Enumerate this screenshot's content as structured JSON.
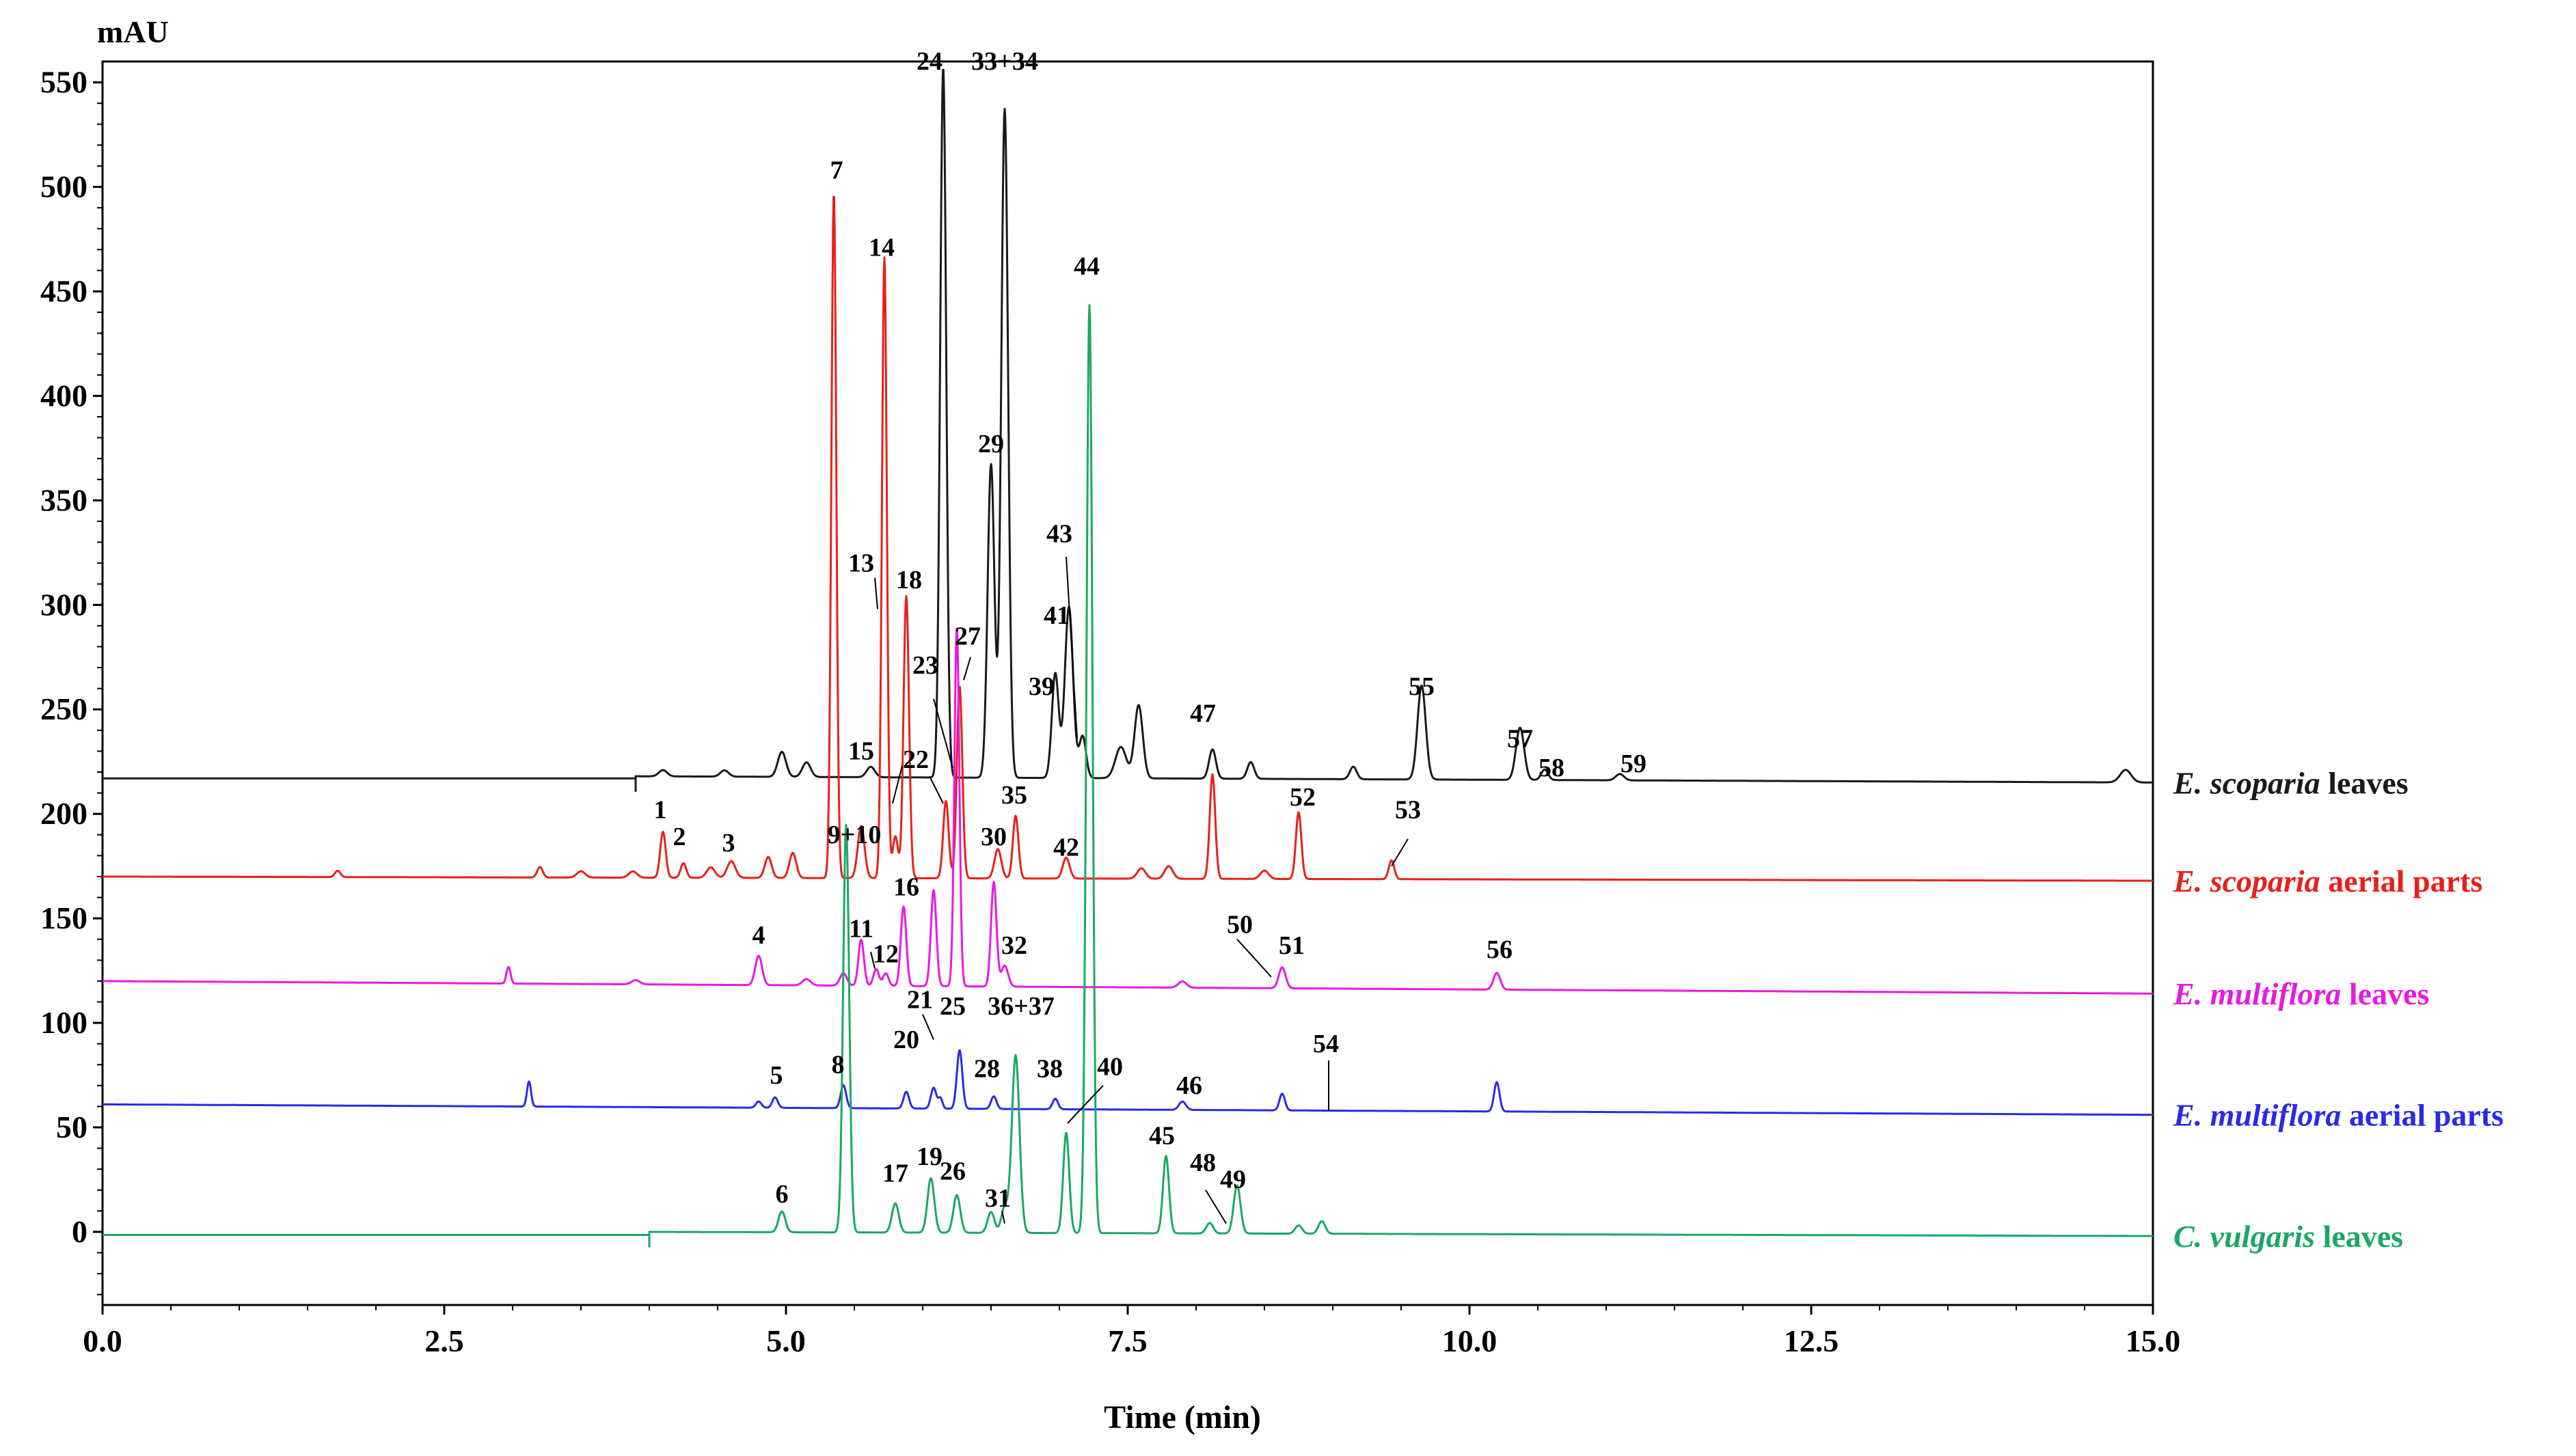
{
  "chart_data": {
    "type": "line",
    "title": "",
    "xlabel": "Time (min)",
    "ylabel": "mAU",
    "xlim": [
      0,
      15
    ],
    "ylim": [
      -35,
      560
    ],
    "x_ticks": [
      "0.0",
      "2.5",
      "5.0",
      "7.5",
      "10.0",
      "12.5",
      "15.0"
    ],
    "y_ticks": [
      "0",
      "50",
      "100",
      "150",
      "200",
      "250",
      "300",
      "350",
      "400",
      "450",
      "500",
      "550"
    ],
    "series": [
      {
        "name_italic": "E. scoparia",
        "name_rest": " leaves",
        "color": "#1a1a1a",
        "start": 3.9,
        "base_start": 218,
        "base_end": 215,
        "pre_base": 217,
        "dip": 3.9,
        "peaks": [
          [
            4.1,
            3,
            0.03
          ],
          [
            4.55,
            3,
            0.03
          ],
          [
            4.97,
            12,
            0.03
          ],
          [
            5.15,
            7,
            0.03
          ],
          [
            5.62,
            5,
            0.03
          ],
          [
            6.15,
            340,
            0.022
          ],
          [
            6.5,
            150,
            0.025
          ],
          [
            6.6,
            320,
            0.025
          ],
          [
            6.97,
            50,
            0.025
          ],
          [
            7.07,
            82,
            0.03
          ],
          [
            7.17,
            20,
            0.025
          ],
          [
            7.45,
            15,
            0.04
          ],
          [
            7.58,
            35,
            0.03
          ],
          [
            8.12,
            14,
            0.025
          ],
          [
            8.4,
            8,
            0.025
          ],
          [
            9.15,
            6,
            0.025
          ],
          [
            9.65,
            45,
            0.03
          ],
          [
            10.37,
            25,
            0.03
          ],
          [
            10.55,
            5,
            0.025
          ],
          [
            11.1,
            3,
            0.03
          ],
          [
            14.8,
            6,
            0.04
          ]
        ]
      },
      {
        "name_italic": "E. scoparia",
        "name_rest": " aerial  parts",
        "color": "#e8201a",
        "start": 0,
        "base_start": 170,
        "base_end": 168,
        "peaks": [
          [
            1.72,
            3,
            0.02
          ],
          [
            3.2,
            5,
            0.02
          ],
          [
            3.5,
            3,
            0.03
          ],
          [
            3.88,
            3,
            0.03
          ],
          [
            4.1,
            22,
            0.02
          ],
          [
            4.25,
            7,
            0.02
          ],
          [
            4.45,
            5,
            0.03
          ],
          [
            4.6,
            8,
            0.03
          ],
          [
            4.87,
            10,
            0.025
          ],
          [
            5.05,
            12,
            0.025
          ],
          [
            5.35,
            328,
            0.018
          ],
          [
            5.55,
            25,
            0.025
          ],
          [
            5.72,
            297,
            0.018
          ],
          [
            5.8,
            20,
            0.02
          ],
          [
            5.88,
            135,
            0.02
          ],
          [
            6.17,
            37,
            0.02
          ],
          [
            6.27,
            92,
            0.02
          ],
          [
            6.55,
            14,
            0.025
          ],
          [
            6.68,
            30,
            0.02
          ],
          [
            7.05,
            10,
            0.025
          ],
          [
            7.6,
            5,
            0.03
          ],
          [
            7.8,
            6,
            0.03
          ],
          [
            8.12,
            50,
            0.02
          ],
          [
            8.5,
            4,
            0.03
          ],
          [
            8.75,
            32,
            0.02
          ],
          [
            9.43,
            9,
            0.02
          ]
        ]
      },
      {
        "name_italic": "E. multiflora",
        "name_rest": " leaves",
        "color": "#e81ae0",
        "start": 0,
        "base_start": 120,
        "base_end": 114,
        "peaks": [
          [
            2.97,
            8,
            0.015
          ],
          [
            3.9,
            2,
            0.03
          ],
          [
            4.8,
            14,
            0.025
          ],
          [
            5.15,
            3,
            0.03
          ],
          [
            5.42,
            6,
            0.025
          ],
          [
            5.55,
            22,
            0.02
          ],
          [
            5.66,
            8,
            0.02
          ],
          [
            5.73,
            6,
            0.02
          ],
          [
            5.86,
            38,
            0.02
          ],
          [
            6.08,
            46,
            0.02
          ],
          [
            6.25,
            172,
            0.018
          ],
          [
            6.52,
            50,
            0.02
          ],
          [
            6.6,
            10,
            0.025
          ],
          [
            7.9,
            3,
            0.03
          ],
          [
            8.63,
            10,
            0.025
          ],
          [
            10.2,
            8,
            0.025
          ]
        ]
      },
      {
        "name_italic": "E. multiflora",
        "name_rest": " aerial  parts",
        "color": "#2a2ae8",
        "start": 0,
        "base_start": 61,
        "base_end": 56,
        "peaks": [
          [
            3.12,
            12,
            0.015
          ],
          [
            4.8,
            3,
            0.02
          ],
          [
            4.92,
            5,
            0.02
          ],
          [
            5.42,
            11,
            0.02
          ],
          [
            5.88,
            8,
            0.02
          ],
          [
            6.08,
            10,
            0.02
          ],
          [
            6.13,
            5,
            0.015
          ],
          [
            6.27,
            28,
            0.02
          ],
          [
            6.52,
            6,
            0.02
          ],
          [
            6.97,
            5,
            0.02
          ],
          [
            7.9,
            4,
            0.025
          ],
          [
            8.63,
            8,
            0.02
          ],
          [
            10.2,
            14,
            0.02
          ]
        ]
      },
      {
        "name_italic": "C. vulgaris",
        "name_rest": " leaves",
        "color": "#1aa864",
        "start": 4.0,
        "base_start": 0,
        "base_end": -2,
        "pre_base": -1.5,
        "dip": 4.0,
        "peaks": [
          [
            4.97,
            10,
            0.025
          ],
          [
            5.44,
            195,
            0.022
          ],
          [
            5.8,
            14,
            0.025
          ],
          [
            6.06,
            26,
            0.025
          ],
          [
            6.25,
            18,
            0.025
          ],
          [
            6.5,
            10,
            0.025
          ],
          [
            6.6,
            12,
            0.025
          ],
          [
            6.68,
            85,
            0.028
          ],
          [
            7.05,
            48,
            0.022
          ],
          [
            7.22,
            444,
            0.022
          ],
          [
            7.78,
            37,
            0.022
          ],
          [
            8.1,
            5,
            0.025
          ],
          [
            8.3,
            23,
            0.025
          ],
          [
            8.75,
            4,
            0.025
          ],
          [
            8.92,
            6,
            0.025
          ]
        ]
      }
    ],
    "annotations": [
      {
        "text": "24",
        "x": 6.05,
        "y": 556
      },
      {
        "text": "33+34",
        "x": 6.6,
        "y": 556
      },
      {
        "text": "7",
        "x": 5.37,
        "y": 504
      },
      {
        "text": "14",
        "x": 5.7,
        "y": 467
      },
      {
        "text": "44",
        "x": 7.2,
        "y": 458
      },
      {
        "text": "29",
        "x": 6.5,
        "y": 373
      },
      {
        "text": "43",
        "x": 7.0,
        "y": 330
      },
      {
        "text": "13",
        "x": 5.55,
        "y": 316
      },
      {
        "text": "18",
        "x": 5.9,
        "y": 308
      },
      {
        "text": "41",
        "x": 6.98,
        "y": 291
      },
      {
        "text": "27",
        "x": 6.33,
        "y": 281
      },
      {
        "text": "23",
        "x": 6.02,
        "y": 267
      },
      {
        "text": "39",
        "x": 6.87,
        "y": 257
      },
      {
        "text": "55",
        "x": 9.65,
        "y": 257
      },
      {
        "text": "47",
        "x": 8.05,
        "y": 244
      },
      {
        "text": "57",
        "x": 10.37,
        "y": 232
      },
      {
        "text": "15",
        "x": 5.55,
        "y": 226
      },
      {
        "text": "22",
        "x": 5.95,
        "y": 222
      },
      {
        "text": "58",
        "x": 10.6,
        "y": 218
      },
      {
        "text": "59",
        "x": 11.2,
        "y": 220
      },
      {
        "text": "35",
        "x": 6.67,
        "y": 205
      },
      {
        "text": "52",
        "x": 8.78,
        "y": 204
      },
      {
        "text": "1",
        "x": 4.08,
        "y": 198
      },
      {
        "text": "53",
        "x": 9.55,
        "y": 198
      },
      {
        "text": "2",
        "x": 4.22,
        "y": 185
      },
      {
        "text": "3",
        "x": 4.58,
        "y": 182
      },
      {
        "text": "9+10",
        "x": 5.5,
        "y": 186
      },
      {
        "text": "30",
        "x": 6.52,
        "y": 185
      },
      {
        "text": "42",
        "x": 7.05,
        "y": 180
      },
      {
        "text": "16",
        "x": 5.88,
        "y": 161
      },
      {
        "text": "4",
        "x": 4.8,
        "y": 138
      },
      {
        "text": "11",
        "x": 5.55,
        "y": 141
      },
      {
        "text": "50",
        "x": 8.32,
        "y": 143
      },
      {
        "text": "32",
        "x": 6.67,
        "y": 133
      },
      {
        "text": "51",
        "x": 8.7,
        "y": 133
      },
      {
        "text": "56",
        "x": 10.22,
        "y": 131
      },
      {
        "text": "12",
        "x": 5.73,
        "y": 129
      },
      {
        "text": "21",
        "x": 5.98,
        "y": 107
      },
      {
        "text": "25",
        "x": 6.22,
        "y": 104
      },
      {
        "text": "36+37",
        "x": 6.72,
        "y": 104
      },
      {
        "text": "20",
        "x": 5.88,
        "y": 88
      },
      {
        "text": "8",
        "x": 5.38,
        "y": 76
      },
      {
        "text": "40",
        "x": 7.37,
        "y": 75
      },
      {
        "text": "54",
        "x": 8.95,
        "y": 86
      },
      {
        "text": "28",
        "x": 6.47,
        "y": 74
      },
      {
        "text": "38",
        "x": 6.93,
        "y": 74
      },
      {
        "text": "5",
        "x": 4.93,
        "y": 71
      },
      {
        "text": "46",
        "x": 7.95,
        "y": 66
      },
      {
        "text": "45",
        "x": 7.75,
        "y": 42
      },
      {
        "text": "19",
        "x": 6.05,
        "y": 32
      },
      {
        "text": "48",
        "x": 8.05,
        "y": 29
      },
      {
        "text": "49",
        "x": 8.27,
        "y": 21
      },
      {
        "text": "17",
        "x": 5.8,
        "y": 24
      },
      {
        "text": "26",
        "x": 6.22,
        "y": 25
      },
      {
        "text": "31",
        "x": 6.55,
        "y": 12
      },
      {
        "text": "6",
        "x": 4.97,
        "y": 14
      }
    ],
    "leaders": [
      [
        6.08,
        255,
        6.22,
        222
      ],
      [
        5.85,
        223,
        5.78,
        205
      ],
      [
        6.05,
        218,
        6.15,
        205
      ],
      [
        5.65,
        313,
        5.67,
        298
      ],
      [
        7.05,
        323,
        7.13,
        236
      ],
      [
        6.35,
        275,
        6.3,
        264
      ],
      [
        8.3,
        140,
        8.55,
        122
      ],
      [
        9.55,
        188,
        9.43,
        175
      ],
      [
        5.62,
        134,
        5.65,
        126
      ],
      [
        6.0,
        104,
        6.08,
        92
      ],
      [
        7.32,
        70,
        7.06,
        52
      ],
      [
        8.97,
        82,
        8.97,
        58
      ],
      [
        8.07,
        20,
        8.22,
        4
      ],
      [
        6.6,
        4,
        6.58,
        10
      ]
    ]
  }
}
